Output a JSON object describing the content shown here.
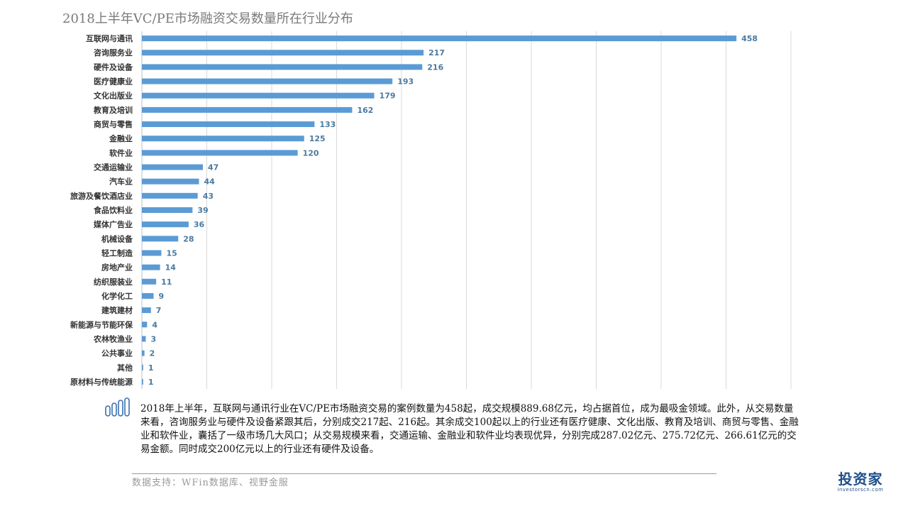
{
  "page_title": "2018上半年VC/PE市场融资交易数量所在行业分布",
  "chart_data": {
    "type": "bar",
    "orientation": "horizontal",
    "title": "2018上半年VC/PE市场融资交易数量所在行业分布",
    "categories": [
      "互联网与通讯",
      "咨询服务业",
      "硬件及设备",
      "医疗健康业",
      "文化出版业",
      "教育及培训",
      "商贸与零售",
      "金融业",
      "软件业",
      "交通运输业",
      "汽车业",
      "旅游及餐饮酒店业",
      "食品饮料业",
      "媒体广告业",
      "机械设备",
      "轻工制造",
      "房地产业",
      "纺织服装业",
      "化学化工",
      "建筑建材",
      "新能源与节能环保",
      "农林牧渔业",
      "公共事业",
      "其他",
      "原材料与传统能源"
    ],
    "values": [
      458,
      217,
      216,
      193,
      179,
      162,
      133,
      125,
      120,
      47,
      44,
      43,
      39,
      36,
      28,
      15,
      14,
      11,
      9,
      7,
      4,
      3,
      2,
      1,
      1
    ],
    "xlim": [
      0,
      500
    ],
    "grid": true,
    "bar_color": "#5b9bd5",
    "label_color": "#4a7aa0"
  },
  "description": "2018年上半年，互联网与通讯行业在VC/PE市场融资交易的案例数量为458起，成交规模889.68亿元，均占据首位，成为最吸金领域。此外，从交易数量来看，咨询服务业与硬件及设备紧跟其后，分别成交217起、216起。其余成交100起以上的行业还有医疗健康、文化出版、教育及培训、商贸与零售、金融业和软件业，囊括了一级市场几大风口；从交易规模来看，交通运输、金融业和软件业均表现优异，分别完成287.02亿元、275.72亿元、266.61亿元的交易金额。同时成交200亿元以上的行业还有硬件及设备。",
  "source": "数据支持：WFin数据库、视野金服",
  "logo": {
    "main": "投资家",
    "sub": "investorscn.com"
  },
  "icon_color": "#3a6fb0"
}
